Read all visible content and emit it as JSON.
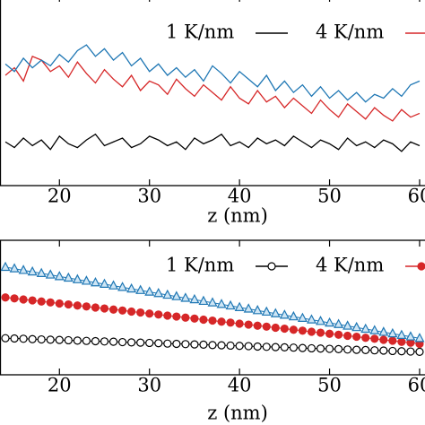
{
  "chart_data": [
    {
      "type": "line",
      "x_label": "z (nm)",
      "xlim": [
        13.4,
        60.6
      ],
      "xticks": [
        20,
        30,
        40,
        50,
        60
      ],
      "ylim": [
        0,
        100
      ],
      "x": [
        14,
        15,
        16,
        17,
        18,
        19,
        20,
        21,
        22,
        23,
        24,
        25,
        26,
        27,
        28,
        29,
        30,
        31,
        32,
        33,
        34,
        35,
        36,
        37,
        38,
        39,
        40,
        41,
        42,
        43,
        44,
        45,
        46,
        47,
        48,
        49,
        50,
        51,
        52,
        53,
        54,
        55,
        56,
        57,
        58,
        59,
        60
      ],
      "series": [
        {
          "name": "1 K/nm",
          "color": "#000000",
          "values": [
            23,
            20,
            25,
            21,
            24,
            19,
            26,
            22,
            20,
            24,
            27,
            21,
            23,
            25,
            20,
            22,
            26,
            24,
            21,
            23,
            19,
            25,
            22,
            24,
            27,
            21,
            23,
            20,
            25,
            22,
            24,
            21,
            26,
            23,
            20,
            24,
            22,
            19,
            25,
            21,
            23,
            20,
            24,
            22,
            18,
            23,
            21
          ]
        },
        {
          "name": "4 K/nm",
          "color": "#d62728",
          "values": [
            58,
            62,
            55,
            68,
            66,
            60,
            63,
            57,
            65,
            59,
            54,
            61,
            56,
            52,
            58,
            50,
            55,
            53,
            48,
            56,
            51,
            47,
            53,
            49,
            45,
            52,
            46,
            43,
            50,
            44,
            47,
            41,
            46,
            42,
            38,
            45,
            40,
            36,
            43,
            39,
            35,
            41,
            37,
            34,
            40,
            36,
            38
          ]
        },
        {
          "color": "#1f77b4",
          "values": [
            64,
            60,
            67,
            62,
            66,
            63,
            69,
            65,
            71,
            74,
            68,
            72,
            66,
            70,
            63,
            67,
            60,
            64,
            58,
            62,
            57,
            61,
            55,
            63,
            59,
            54,
            60,
            56,
            52,
            58,
            50,
            55,
            49,
            53,
            47,
            52,
            46,
            50,
            45,
            49,
            44,
            48,
            46,
            51,
            47,
            53,
            55
          ]
        }
      ]
    },
    {
      "type": "line-markers",
      "x_label": "z (nm)",
      "xlim": [
        13.4,
        60.6
      ],
      "xticks": [
        20,
        30,
        40,
        50,
        60
      ],
      "ylim": [
        0,
        100
      ],
      "x": [
        14,
        15,
        16,
        17,
        18,
        19,
        20,
        21,
        22,
        23,
        24,
        25,
        26,
        27,
        28,
        29,
        30,
        31,
        32,
        33,
        34,
        35,
        36,
        37,
        38,
        39,
        40,
        41,
        42,
        43,
        44,
        45,
        46,
        47,
        48,
        49,
        50,
        51,
        52,
        53,
        54,
        55,
        56,
        57,
        58,
        59,
        60
      ],
      "series": [
        {
          "name": "1 K/nm",
          "color": "#000000",
          "marker": "open-circle",
          "values": [
            27.2,
            27,
            26.8,
            26.5,
            26.3,
            26.1,
            25.9,
            25.7,
            25.4,
            25.2,
            25,
            24.8,
            24.6,
            24.3,
            24.1,
            23.9,
            23.7,
            23.5,
            23.2,
            23,
            22.8,
            22.6,
            22.4,
            22.1,
            21.9,
            21.7,
            21.5,
            21.3,
            21,
            20.8,
            20.6,
            20.4,
            20.2,
            19.9,
            19.7,
            19.5,
            19.3,
            19.1,
            18.8,
            18.6,
            18.4,
            18.2,
            18,
            17.7,
            17.5,
            17.3,
            17.1
          ]
        },
        {
          "name": "4 K/nm",
          "color": "#d62728",
          "marker": "circle",
          "values": [
            57.5,
            56.8,
            56,
            55.3,
            54.5,
            53.8,
            53,
            52.3,
            51.5,
            50.8,
            50,
            49.3,
            48.5,
            47.8,
            47,
            46.3,
            45.5,
            44.8,
            44,
            43.3,
            42.5,
            41.8,
            41,
            40.3,
            39.5,
            38.8,
            38,
            37.3,
            36.5,
            35.8,
            35,
            34.3,
            33.5,
            32.8,
            32,
            31.3,
            30.5,
            29.8,
            29,
            28.3,
            27.5,
            26.8,
            26,
            25.3,
            24.5,
            23.8,
            23
          ]
        },
        {
          "color": "#1f77b4",
          "marker": "triangle",
          "values": [
            80,
            78.9,
            77.7,
            76.6,
            75.4,
            74.3,
            73.1,
            72,
            70.8,
            69.7,
            68.5,
            67.4,
            66.2,
            65.1,
            63.9,
            62.8,
            61.6,
            60.5,
            59.3,
            58.2,
            57,
            55.9,
            54.7,
            53.6,
            52.4,
            51.3,
            50.1,
            49,
            47.8,
            46.7,
            45.5,
            44.4,
            43.2,
            42.1,
            40.9,
            39.8,
            38.6,
            37.5,
            36.3,
            35.2,
            34,
            32.9,
            31.7,
            30.6,
            29.4,
            28.3,
            27.1
          ]
        }
      ]
    }
  ]
}
